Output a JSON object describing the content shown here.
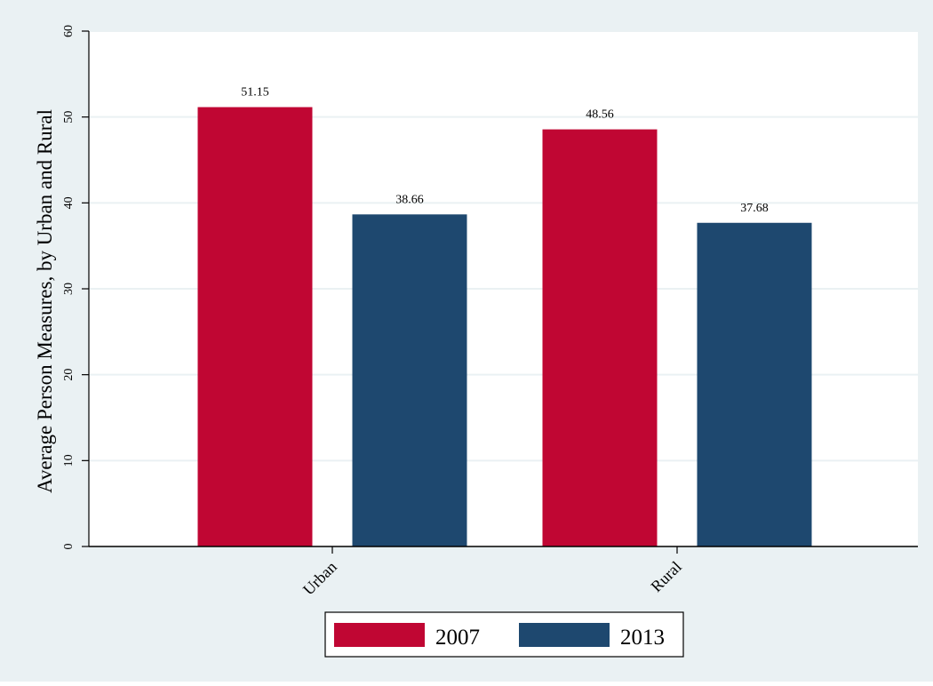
{
  "chart_data": {
    "type": "bar",
    "categories": [
      "Urban",
      "Rural"
    ],
    "series": [
      {
        "name": "2007",
        "values": [
          51.15,
          48.56
        ],
        "labels": [
          "51.15",
          "48.56"
        ],
        "color": "#c00633"
      },
      {
        "name": "2013",
        "values": [
          38.66,
          37.68
        ],
        "labels": [
          "38.66",
          "37.68"
        ],
        "color": "#1e486f"
      }
    ],
    "ylabel": "Average Person Measures, by Urban and Rural",
    "xlabel": "",
    "ylim": [
      0,
      60
    ],
    "yticks": [
      0,
      10,
      20,
      30,
      40,
      50,
      60
    ],
    "grid": true,
    "legend_position": "bottom",
    "colors": {
      "outer_background": "#eaf1f3",
      "plot_background": "#ffffff",
      "grid": "#eaf1f3",
      "axis": "#000000"
    }
  }
}
